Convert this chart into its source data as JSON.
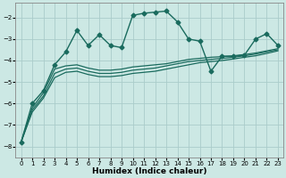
{
  "xlabel": "Humidex (Indice chaleur)",
  "background_color": "#cce8e4",
  "grid_color": "#aaccca",
  "line_color": "#1a6b5e",
  "xlim": [
    -0.5,
    23.5
  ],
  "ylim": [
    -8.5,
    -1.3
  ],
  "yticks": [
    -8,
    -7,
    -6,
    -5,
    -4,
    -3,
    -2
  ],
  "xticks": [
    0,
    1,
    2,
    3,
    4,
    5,
    6,
    7,
    8,
    9,
    10,
    11,
    12,
    13,
    14,
    15,
    16,
    17,
    18,
    19,
    20,
    21,
    22,
    23
  ],
  "series": [
    {
      "x": [
        0,
        1,
        2,
        3,
        4,
        5,
        6,
        7,
        8,
        9,
        10,
        11,
        12,
        13,
        14,
        15,
        16,
        17,
        18,
        19,
        20,
        21,
        22,
        23
      ],
      "y": [
        -7.8,
        -6.0,
        -5.4,
        -4.2,
        -3.6,
        -2.6,
        -3.3,
        -2.8,
        -3.3,
        -3.4,
        -1.9,
        -1.8,
        -1.75,
        -1.7,
        -2.2,
        -3.0,
        -3.1,
        -4.5,
        -3.8,
        -3.8,
        -3.75,
        -3.0,
        -2.75,
        -3.3
      ],
      "marker": "D",
      "markersize": 2.5,
      "linewidth": 1.0
    },
    {
      "x": [
        0,
        1,
        2,
        3,
        4,
        5,
        6,
        7,
        8,
        9,
        10,
        11,
        12,
        13,
        14,
        15,
        16,
        17,
        18,
        19,
        20,
        21,
        22,
        23
      ],
      "y": [
        -7.8,
        -6.2,
        -5.5,
        -4.4,
        -4.25,
        -4.2,
        -4.35,
        -4.45,
        -4.45,
        -4.4,
        -4.3,
        -4.25,
        -4.2,
        -4.15,
        -4.05,
        -3.95,
        -3.9,
        -3.85,
        -3.82,
        -3.78,
        -3.72,
        -3.65,
        -3.55,
        -3.45
      ],
      "marker": null,
      "linewidth": 0.9
    },
    {
      "x": [
        0,
        1,
        2,
        3,
        4,
        5,
        6,
        7,
        8,
        9,
        10,
        11,
        12,
        13,
        14,
        15,
        16,
        17,
        18,
        19,
        20,
        21,
        22,
        23
      ],
      "y": [
        -7.8,
        -6.3,
        -5.65,
        -4.6,
        -4.4,
        -4.35,
        -4.5,
        -4.6,
        -4.6,
        -4.55,
        -4.45,
        -4.4,
        -4.35,
        -4.25,
        -4.15,
        -4.05,
        -4.0,
        -3.95,
        -3.9,
        -3.85,
        -3.78,
        -3.7,
        -3.6,
        -3.5
      ],
      "marker": null,
      "linewidth": 0.9
    },
    {
      "x": [
        0,
        1,
        2,
        3,
        4,
        5,
        6,
        7,
        8,
        9,
        10,
        11,
        12,
        13,
        14,
        15,
        16,
        17,
        18,
        19,
        20,
        21,
        22,
        23
      ],
      "y": [
        -7.8,
        -6.4,
        -5.75,
        -4.8,
        -4.55,
        -4.5,
        -4.65,
        -4.75,
        -4.75,
        -4.7,
        -4.6,
        -4.55,
        -4.5,
        -4.4,
        -4.3,
        -4.2,
        -4.1,
        -4.05,
        -4.0,
        -3.93,
        -3.85,
        -3.78,
        -3.67,
        -3.55
      ],
      "marker": null,
      "linewidth": 0.9
    }
  ]
}
